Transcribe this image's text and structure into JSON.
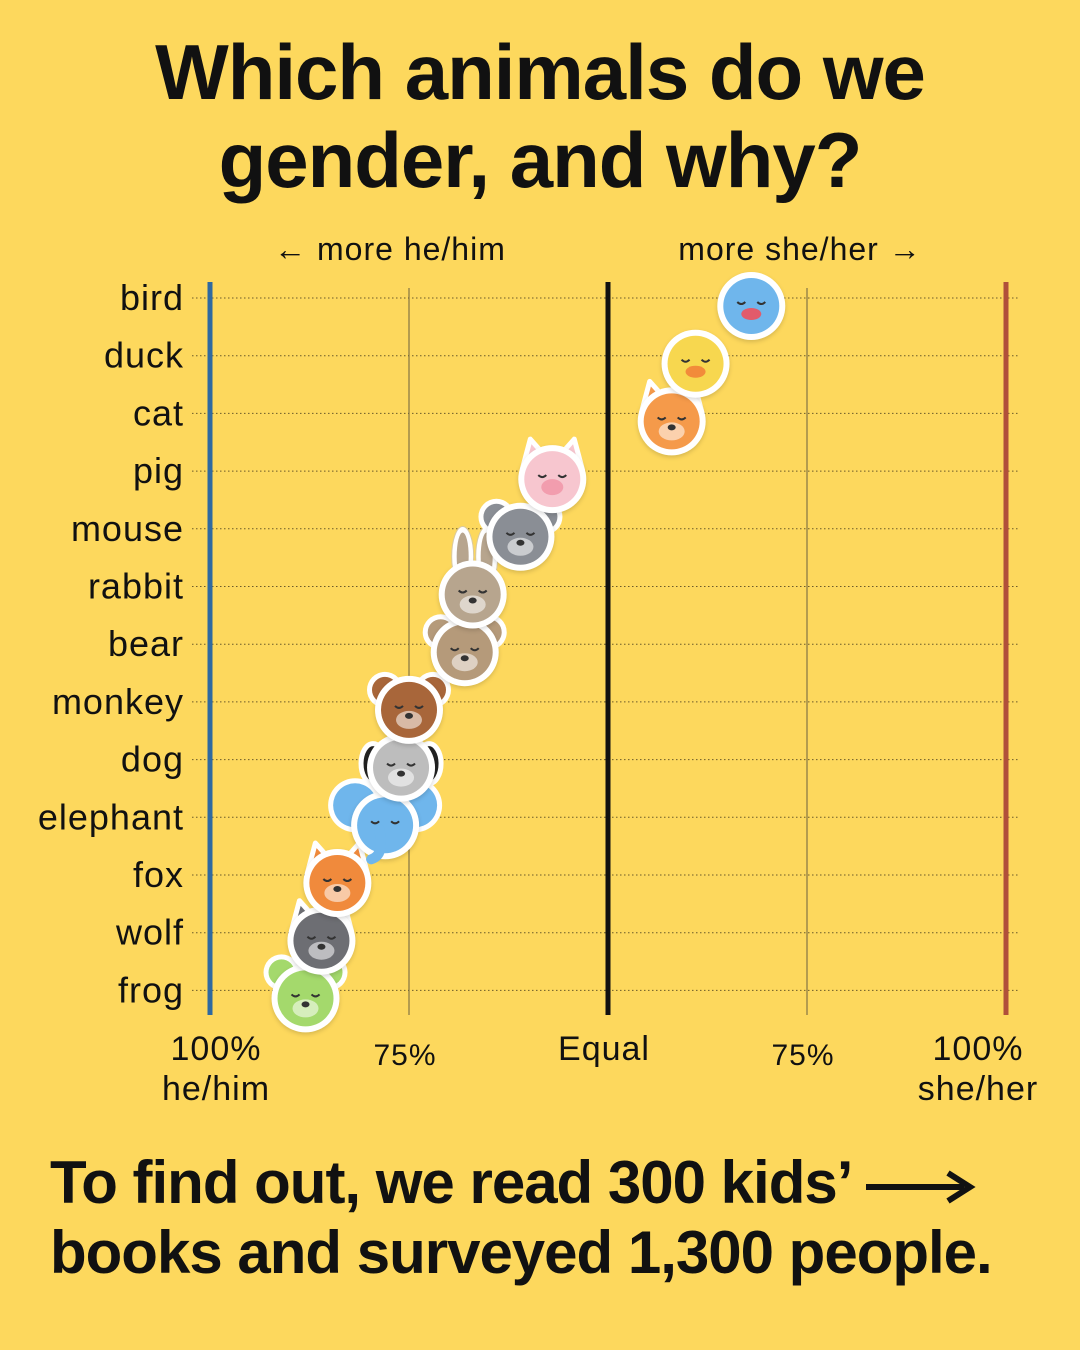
{
  "title": {
    "line1": "Which animals do we",
    "line2": "gender, and why?"
  },
  "chart_data": {
    "type": "scatter",
    "direction_labels": {
      "left": "← more he/him",
      "right": "more she/her →"
    },
    "categories": [
      "bird",
      "duck",
      "cat",
      "pig",
      "mouse",
      "rabbit",
      "bear",
      "monkey",
      "dog",
      "elephant",
      "fox",
      "wolf",
      "frog"
    ],
    "values": [
      68,
      61,
      58,
      43,
      39,
      33,
      32,
      25,
      24,
      22,
      16,
      14,
      12
    ],
    "value_meaning": "percent of references that are she/her (0 = 100% he/him, 50 = Equal, 100 = 100% she/her)",
    "xlim": [
      0,
      100
    ],
    "ticks": [
      {
        "value": 0,
        "line1": "100%",
        "line2": "he/him"
      },
      {
        "value": 25,
        "line1": "75%",
        "line2": ""
      },
      {
        "value": 50,
        "line1": "Equal",
        "line2": ""
      },
      {
        "value": 75,
        "line1": "75%",
        "line2": ""
      },
      {
        "value": 100,
        "line1": "100%",
        "line2": "she/her"
      }
    ],
    "icons": [
      "bird-icon",
      "duck-icon",
      "cat-icon",
      "pig-icon",
      "mouse-icon",
      "rabbit-icon",
      "bear-icon",
      "monkey-icon",
      "dog-icon",
      "elephant-icon",
      "fox-icon",
      "wolf-icon",
      "frog-icon"
    ],
    "icon_colors": [
      "#6FB6EC",
      "#F7D74F",
      "#F59A4A",
      "#F7C6CF",
      "#8A8E95",
      "#B7A58E",
      "#B59A7A",
      "#A8663A",
      "#BDBDBD",
      "#6FB6EC",
      "#F08A3C",
      "#6D6E73",
      "#A4D96C"
    ],
    "colors": {
      "he_line": "#2F69A0",
      "she_line": "#B0503A",
      "equal_line": "#111111",
      "background": "#FDD85D"
    }
  },
  "footer": {
    "line1": "To find out, we read 300 kids’",
    "line2": "books and surveyed 1,300 people."
  }
}
